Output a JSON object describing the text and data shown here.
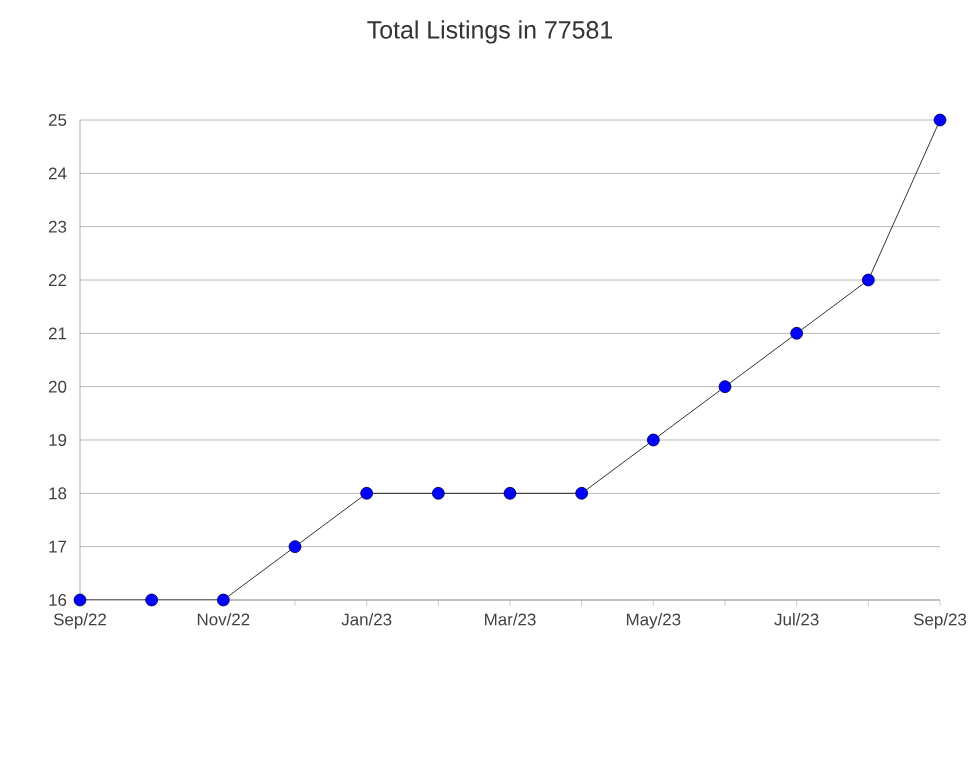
{
  "chart_data": {
    "type": "line",
    "title": "Total Listings in 77581",
    "categories": [
      "Sep/22",
      null,
      "Nov/22",
      null,
      "Jan/23",
      null,
      "Mar/23",
      null,
      "May/23",
      null,
      "Jul/23",
      null,
      "Sep/23"
    ],
    "series": [
      {
        "color": "#0000ff",
        "values": [
          16,
          16,
          16,
          17,
          18,
          18,
          18,
          18,
          19,
          20,
          21,
          22,
          25
        ]
      }
    ],
    "ylim": [
      16,
      25
    ],
    "yticks": [
      16,
      17,
      18,
      19,
      20,
      21,
      22,
      23,
      24,
      25
    ],
    "grid": "y",
    "marker": "circle",
    "line_style": "solid"
  }
}
